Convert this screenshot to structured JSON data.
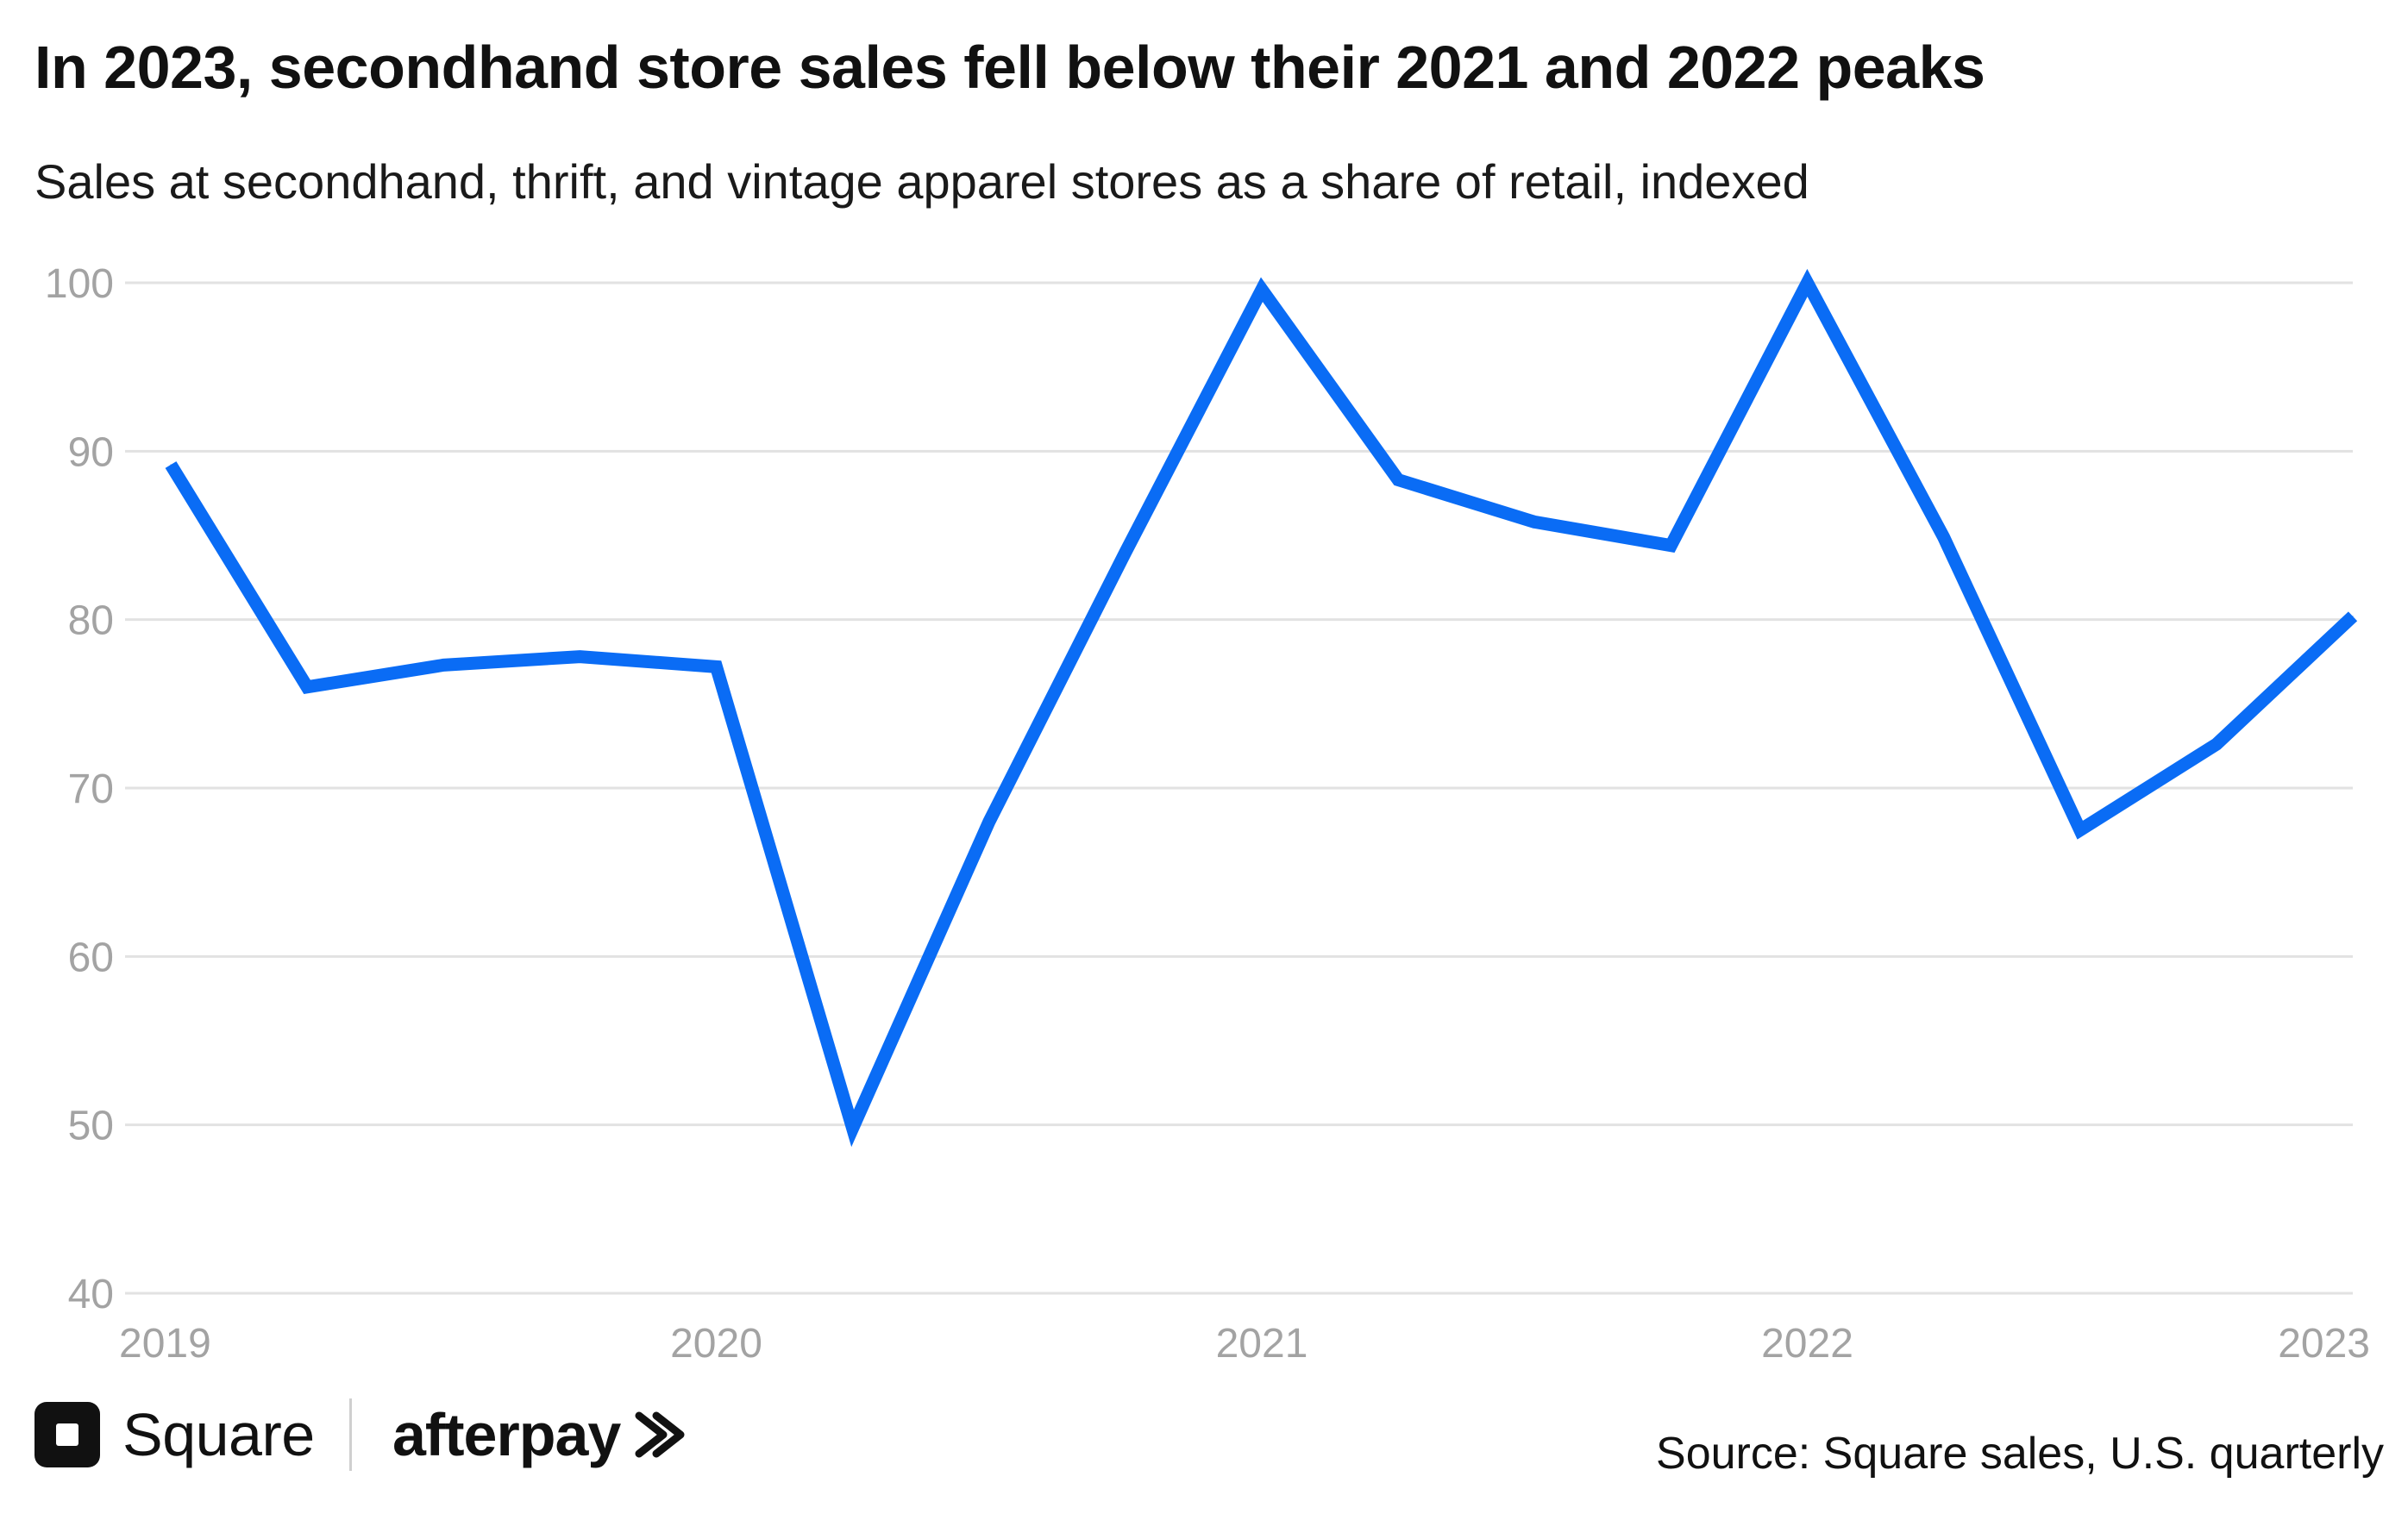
{
  "title": "In 2023, secondhand store sales fell below their 2021 and 2022 peaks",
  "subtitle": "Sales at secondhand, thrift, and vintage apparel stores as a share of retail, indexed",
  "source": "Source: Square sales, U.S. quarterly",
  "brands": {
    "square": "Square",
    "afterpay": "afterpay"
  },
  "icons": {
    "square": "square-logo-icon",
    "afterpay": "afterpay-arrows-icon"
  },
  "colors": {
    "series": "#0a6cf5",
    "grid": "#e2e2e2",
    "tick": "#a3a3a3"
  },
  "chart_data": {
    "type": "line",
    "x": [
      0,
      0.25,
      0.5,
      0.75,
      1,
      1.25,
      1.5,
      1.75,
      2,
      2.25,
      2.5,
      2.75,
      3,
      3.25,
      3.5,
      3.75,
      4
    ],
    "x_origin_year": 2019,
    "x_tick_values": [
      0,
      1,
      2,
      3,
      4
    ],
    "x_tick_labels": [
      "2019",
      "2020",
      "2021",
      "2022",
      "2023"
    ],
    "series": [
      {
        "values": [
          89.2,
          76.0,
          77.3,
          77.8,
          77.2,
          49.8,
          68.0,
          84.0,
          99.6,
          88.3,
          85.8,
          84.4,
          100.0,
          84.9,
          67.5,
          72.6,
          80.2
        ]
      }
    ],
    "ylim": [
      40,
      100
    ],
    "y_ticks": [
      40,
      50,
      60,
      70,
      80,
      90,
      100
    ],
    "grid": true,
    "legend": "none",
    "xlabel": "",
    "ylabel": ""
  }
}
